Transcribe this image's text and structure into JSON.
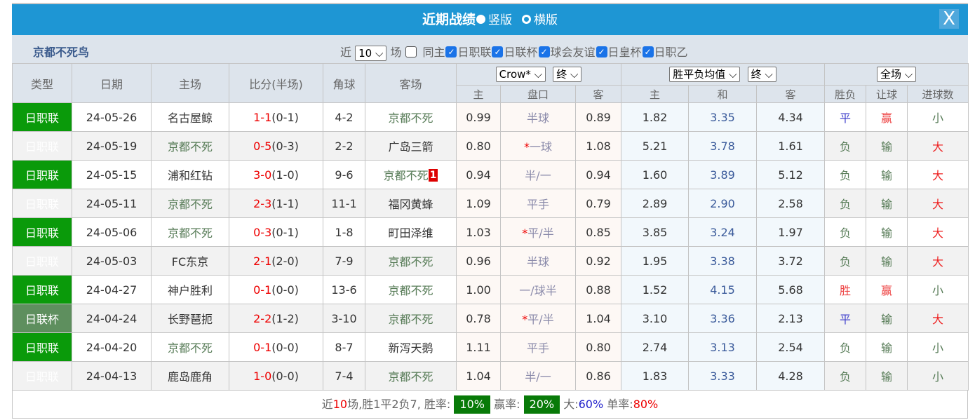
{
  "title": {
    "main": "近期战绩",
    "opt_vertical": "竖版",
    "opt_horizontal": "横版",
    "selected": "竖版",
    "close": "X"
  },
  "filter": {
    "team": "京都不死鸟",
    "recent_prefix": "近",
    "recent_count": "10",
    "recent_suffix": "场",
    "same_home": "同主",
    "same_home_checked": false,
    "leagues": [
      {
        "label": "日职联",
        "checked": true
      },
      {
        "label": "日联杯",
        "checked": true
      },
      {
        "label": "球会友谊",
        "checked": true
      },
      {
        "label": "日皇杯",
        "checked": true
      },
      {
        "label": "日职乙",
        "checked": true
      }
    ]
  },
  "headers": {
    "type": "类型",
    "date": "日期",
    "home": "主场",
    "score": "比分(半场)",
    "corner": "角球",
    "away": "客场",
    "company_select": "Crow*",
    "handicap_time_select": "终",
    "odds_type_select": "胜平负均值",
    "odds_time_select": "终",
    "period_select": "全场",
    "sub": [
      "主",
      "盘口",
      "客",
      "主",
      "和",
      "客",
      "胜负",
      "让球",
      "进球数"
    ]
  },
  "colors": {
    "title_bar": "#1e96d4",
    "league": "#0a9a0a",
    "cup": "#5e8f5e",
    "win_rate_box": "#087a08"
  },
  "rows": [
    {
      "type": "日职联",
      "date": "24-05-26",
      "home": "名古屋鲸",
      "score": "1-1",
      "half": "(0-1)",
      "corner": "4-2",
      "away": "京都不死",
      "away_badge": "",
      "ho": "0.99",
      "star": "",
      "pan": "半球",
      "ao": "0.89",
      "w": "1.82",
      "d": "3.35",
      "l": "4.34",
      "res": "平",
      "hc": "赢",
      "ou": "小",
      "team_side": "away"
    },
    {
      "type": "日职联",
      "date": "24-05-19",
      "home": "京都不死",
      "score": "0-5",
      "half": "(0-3)",
      "corner": "2-2",
      "away": "广岛三箭",
      "away_badge": "",
      "ho": "0.80",
      "star": "*",
      "pan": "一球",
      "ao": "1.08",
      "w": "5.21",
      "d": "3.78",
      "l": "1.61",
      "res": "负",
      "hc": "输",
      "ou": "大",
      "team_side": "home"
    },
    {
      "type": "日职联",
      "date": "24-05-15",
      "home": "浦和红钻",
      "score": "3-0",
      "half": "(1-0)",
      "corner": "9-6",
      "away": "京都不死",
      "away_badge": "1",
      "ho": "0.94",
      "star": "",
      "pan": "半/一",
      "ao": "0.94",
      "w": "1.60",
      "d": "3.89",
      "l": "5.12",
      "res": "负",
      "hc": "输",
      "ou": "大",
      "team_side": "away"
    },
    {
      "type": "日职联",
      "date": "24-05-11",
      "home": "京都不死",
      "score": "2-3",
      "half": "(1-1)",
      "corner": "11-1",
      "away": "福冈黄蜂",
      "away_badge": "",
      "ho": "1.09",
      "star": "",
      "pan": "平手",
      "ao": "0.79",
      "w": "2.89",
      "d": "2.90",
      "l": "2.58",
      "res": "负",
      "hc": "输",
      "ou": "大",
      "team_side": "home"
    },
    {
      "type": "日职联",
      "date": "24-05-06",
      "home": "京都不死",
      "score": "0-3",
      "half": "(0-1)",
      "corner": "1-8",
      "away": "町田泽维",
      "away_badge": "",
      "ho": "1.03",
      "star": "*",
      "pan": "平/半",
      "ao": "0.85",
      "w": "3.85",
      "d": "3.24",
      "l": "1.97",
      "res": "负",
      "hc": "输",
      "ou": "大",
      "team_side": "home"
    },
    {
      "type": "日职联",
      "date": "24-05-03",
      "home": "FC东京",
      "score": "2-1",
      "half": "(2-0)",
      "corner": "7-9",
      "away": "京都不死",
      "away_badge": "",
      "ho": "0.96",
      "star": "",
      "pan": "半球",
      "ao": "0.92",
      "w": "1.95",
      "d": "3.38",
      "l": "3.72",
      "res": "负",
      "hc": "输",
      "ou": "大",
      "team_side": "away"
    },
    {
      "type": "日职联",
      "date": "24-04-27",
      "home": "神户胜利",
      "score": "0-1",
      "half": "(0-0)",
      "corner": "13-6",
      "away": "京都不死",
      "away_badge": "",
      "ho": "1.00",
      "star": "",
      "pan": "一/球半",
      "ao": "0.88",
      "w": "1.52",
      "d": "4.15",
      "l": "5.68",
      "res": "胜",
      "hc": "赢",
      "ou": "小",
      "team_side": "away"
    },
    {
      "type": "日联杯",
      "date": "24-04-24",
      "home": "长野琶扼",
      "score": "2-2",
      "half": "(1-2)",
      "corner": "3-10",
      "away": "京都不死",
      "away_badge": "",
      "ho": "0.78",
      "star": "*",
      "pan": "平/半",
      "ao": "1.04",
      "w": "3.10",
      "d": "3.36",
      "l": "2.13",
      "res": "平",
      "hc": "输",
      "ou": "大",
      "team_side": "away"
    },
    {
      "type": "日职联",
      "date": "24-04-20",
      "home": "京都不死",
      "score": "0-1",
      "half": "(0-0)",
      "corner": "8-7",
      "away": "新泻天鹅",
      "away_badge": "",
      "ho": "1.11",
      "star": "",
      "pan": "平手",
      "ao": "0.80",
      "w": "2.74",
      "d": "3.13",
      "l": "2.54",
      "res": "负",
      "hc": "输",
      "ou": "小",
      "team_side": "home"
    },
    {
      "type": "日职联",
      "date": "24-04-13",
      "home": "鹿岛鹿角",
      "score": "1-0",
      "half": "(0-0)",
      "corner": "7-4",
      "away": "京都不死",
      "away_badge": "",
      "ho": "1.04",
      "star": "",
      "pan": "半/一",
      "ao": "0.86",
      "w": "1.83",
      "d": "3.33",
      "l": "4.28",
      "res": "负",
      "hc": "输",
      "ou": "小",
      "team_side": "away"
    }
  ],
  "summary": {
    "p1": "近",
    "count": "10",
    "p2": "场,胜1平2负7, 胜率:",
    "win_rate": "10%",
    "p3": "赢率:",
    "hc_rate": "20%",
    "p4": "大:",
    "over_rate": "60%",
    "p5": "单率:",
    "odd_rate": "80%"
  }
}
